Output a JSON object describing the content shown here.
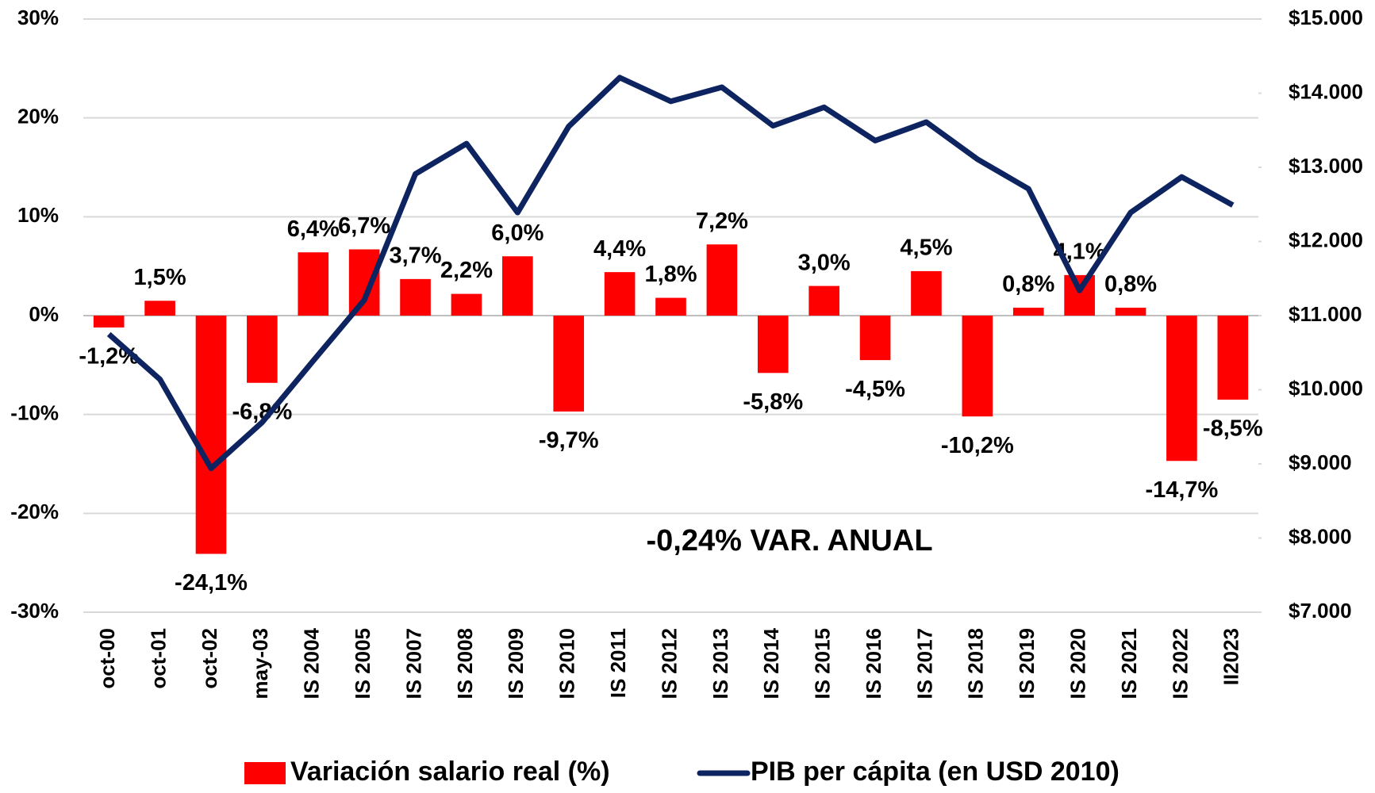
{
  "chart_data": {
    "type": "bar",
    "categories": [
      "oct-00",
      "oct-01",
      "oct-02",
      "may-03",
      "IS 2004",
      "IS 2005",
      "IS 2007",
      "IS 2008",
      "IS 2009",
      "IS 2010",
      "IS 2011",
      "IS 2012",
      "IS 2013",
      "IS 2014",
      "IS 2015",
      "IS 2016",
      "IS 2017",
      "IS 2018",
      "IS 2019",
      "IS 2020",
      "IS 2021",
      "IS 2022",
      "II2023"
    ],
    "series": [
      {
        "name": "Variación salario real (%)",
        "type": "bar",
        "color": "#ff0000",
        "values": [
          -1.2,
          1.5,
          -24.1,
          -6.8,
          6.4,
          6.7,
          3.7,
          2.2,
          6.0,
          -9.7,
          4.4,
          1.8,
          7.2,
          -5.8,
          3.0,
          -4.5,
          4.5,
          -10.2,
          0.8,
          4.1,
          0.8,
          -14.7,
          -8.5
        ],
        "value_labels": [
          "-1,2%",
          "1,5%",
          "-24,1%",
          "-6,8%",
          "6,4%",
          "6,7%",
          "3,7%",
          "2,2%",
          "6,0%",
          "-9,7%",
          "4,4%",
          "1,8%",
          "7,2%",
          "-5,8%",
          "3,0%",
          "-4,5%",
          "4,5%",
          "-10,2%",
          "0,8%",
          "4,1%",
          "0,8%",
          "-14,7%",
          "-8,5%"
        ]
      },
      {
        "name": "PIB per cápita (en USD 2010)",
        "type": "line",
        "axis": "y2",
        "color": "#0d2461",
        "values": [
          10750,
          10140,
          8940,
          9560,
          10390,
          11210,
          12910,
          13320,
          12390,
          13550,
          14210,
          13890,
          14080,
          13560,
          13810,
          13360,
          13610,
          13110,
          12710,
          11340,
          12390,
          12870,
          12490
        ]
      }
    ],
    "ylim": [
      -30,
      30
    ],
    "yticks": [
      {
        "value": -30,
        "label": "-30%"
      },
      {
        "value": -20,
        "label": "-20%"
      },
      {
        "value": -10,
        "label": "-10%"
      },
      {
        "value": 0,
        "label": "0%"
      },
      {
        "value": 10,
        "label": "10%"
      },
      {
        "value": 20,
        "label": "20%"
      },
      {
        "value": 30,
        "label": "30%"
      }
    ],
    "y2lim": [
      7000,
      15000
    ],
    "y2ticks": [
      {
        "value": 7000,
        "label": "$7.000"
      },
      {
        "value": 8000,
        "label": "$8.000"
      },
      {
        "value": 9000,
        "label": "$9.000"
      },
      {
        "value": 10000,
        "label": "$10.000"
      },
      {
        "value": 11000,
        "label": "$11.000"
      },
      {
        "value": 12000,
        "label": "$12.000"
      },
      {
        "value": 13000,
        "label": "$13.000"
      },
      {
        "value": 14000,
        "label": "$14.000"
      },
      {
        "value": 15000,
        "label": "$15.000"
      }
    ],
    "annotation": "-0,24% VAR. ANUAL",
    "grid": true,
    "legend": "bottom"
  }
}
